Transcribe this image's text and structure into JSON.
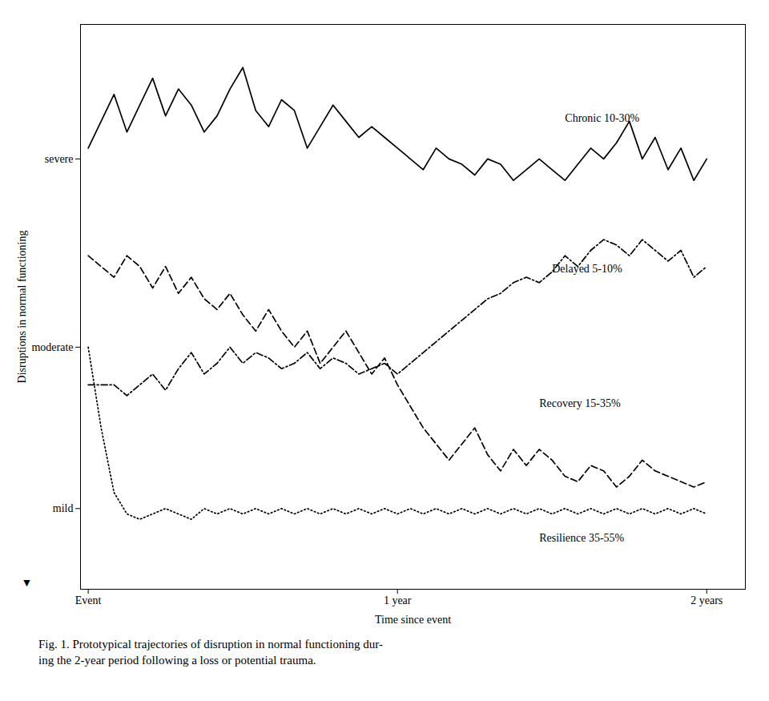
{
  "chart_data": {
    "type": "line",
    "xlabel": "Time since event",
    "ylabel": "Disruptions in normal functioning",
    "ylabel_symbol": "▼",
    "caption": [
      "Fig.  1. Prototypical trajectories of disruption in normal functioning dur-",
      "ing the 2-year period following a loss or potential trauma."
    ],
    "annotations": [
      {
        "text": "Chronic 10-30%",
        "x": 18.5,
        "y": 0.875
      },
      {
        "text": "Delayed 5-10%",
        "x": 18.0,
        "y": 0.595
      },
      {
        "text": "Recovery 15-35%",
        "x": 17.5,
        "y": 0.345
      },
      {
        "text": "Resilience 35-55%",
        "x": 17.5,
        "y": 0.095
      }
    ],
    "x": [
      0,
      0.5,
      1.0,
      1.5,
      2.0,
      2.5,
      3.0,
      3.5,
      4.0,
      4.5,
      5.0,
      5.5,
      6.0,
      6.5,
      7.0,
      7.5,
      8.0,
      8.5,
      9.0,
      9.5,
      10.0,
      10.5,
      11.0,
      11.5,
      12.0,
      12.5,
      13.0,
      13.5,
      14.0,
      14.5,
      15.0,
      15.5,
      16.0,
      16.5,
      17.0,
      17.5,
      18.0,
      18.5,
      19.0,
      19.5,
      20.0,
      20.5,
      21.0,
      21.5,
      22.0,
      22.5,
      23.0,
      23.5,
      24.0
    ],
    "series": [
      {
        "color": "black",
        "line_style": "solid",
        "values": [
          0.82,
          0.87,
          0.92,
          0.85,
          0.9,
          0.95,
          0.88,
          0.93,
          0.9,
          0.85,
          0.88,
          0.93,
          0.97,
          0.89,
          0.86,
          0.91,
          0.89,
          0.82,
          0.86,
          0.9,
          0.87,
          0.84,
          0.86,
          0.84,
          0.82,
          0.8,
          0.78,
          0.82,
          0.8,
          0.79,
          0.77,
          0.8,
          0.79,
          0.76,
          0.78,
          0.8,
          0.78,
          0.76,
          0.79,
          0.82,
          0.8,
          0.83,
          0.87,
          0.8,
          0.84,
          0.78,
          0.82,
          0.76,
          0.8
        ]
      },
      {
        "color": "black",
        "line_style": "dashdot",
        "values": [
          0.38,
          0.38,
          0.38,
          0.36,
          0.38,
          0.4,
          0.37,
          0.41,
          0.44,
          0.4,
          0.42,
          0.45,
          0.42,
          0.44,
          0.43,
          0.41,
          0.42,
          0.44,
          0.41,
          0.43,
          0.42,
          0.4,
          0.41,
          0.42,
          0.4,
          0.42,
          0.44,
          0.46,
          0.48,
          0.5,
          0.52,
          0.54,
          0.55,
          0.57,
          0.58,
          0.57,
          0.59,
          0.62,
          0.6,
          0.63,
          0.65,
          0.64,
          0.62,
          0.65,
          0.63,
          0.61,
          0.63,
          0.58,
          0.6
        ]
      },
      {
        "color": "black",
        "line_style": "dashed",
        "values": [
          0.62,
          0.6,
          0.58,
          0.62,
          0.6,
          0.56,
          0.6,
          0.55,
          0.58,
          0.54,
          0.52,
          0.55,
          0.51,
          0.48,
          0.52,
          0.48,
          0.45,
          0.48,
          0.42,
          0.45,
          0.48,
          0.44,
          0.4,
          0.43,
          0.38,
          0.34,
          0.3,
          0.27,
          0.24,
          0.27,
          0.3,
          0.25,
          0.22,
          0.26,
          0.23,
          0.26,
          0.24,
          0.21,
          0.2,
          0.23,
          0.22,
          0.19,
          0.21,
          0.24,
          0.22,
          0.21,
          0.2,
          0.19,
          0.2
        ]
      },
      {
        "color": "black",
        "line_style": "dotted",
        "values": [
          0.45,
          0.3,
          0.18,
          0.14,
          0.13,
          0.14,
          0.15,
          0.14,
          0.13,
          0.15,
          0.14,
          0.15,
          0.14,
          0.15,
          0.14,
          0.15,
          0.14,
          0.15,
          0.14,
          0.15,
          0.14,
          0.15,
          0.14,
          0.15,
          0.14,
          0.15,
          0.14,
          0.15,
          0.14,
          0.15,
          0.14,
          0.15,
          0.14,
          0.15,
          0.14,
          0.15,
          0.14,
          0.15,
          0.14,
          0.15,
          0.14,
          0.15,
          0.14,
          0.15,
          0.14,
          0.15,
          0.14,
          0.15,
          0.14
        ]
      }
    ],
    "xlim": [
      -0.3,
      25.5
    ],
    "xticks": [
      {
        "value": 0,
        "label": "Event"
      },
      {
        "value": 12,
        "label": "1 year"
      },
      {
        "value": 24,
        "label": "2 years"
      }
    ],
    "ylim": [
      0,
      1.05
    ],
    "yticks": [
      {
        "value": 0.15,
        "label": "mild"
      },
      {
        "value": 0.45,
        "label": "moderate"
      },
      {
        "value": 0.8,
        "label": "severe"
      }
    ],
    "grid": false
  }
}
